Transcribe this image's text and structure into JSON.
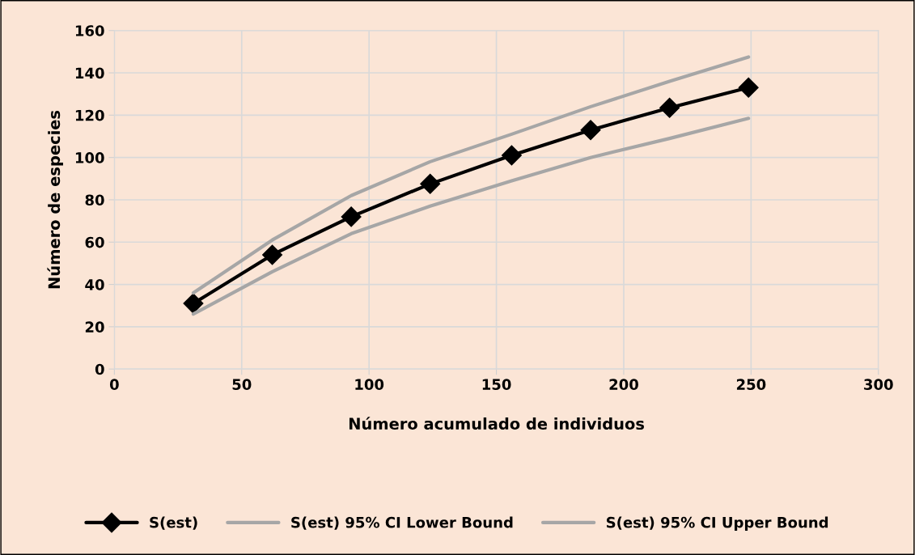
{
  "chart_data": {
    "type": "line",
    "xlabel": "Número acumulado de individuos",
    "ylabel": "Número de especies",
    "x": [
      31,
      62,
      93,
      124,
      156,
      187,
      218,
      249
    ],
    "series": [
      {
        "name": "S(est)",
        "color": "#000000",
        "marker": "diamond",
        "values": [
          31,
          54,
          72,
          87.5,
          101,
          113,
          123.5,
          133
        ]
      },
      {
        "name": "S(est) 95% CI Lower Bound",
        "color": "#a6a6a6",
        "marker": "none",
        "values": [
          26,
          46,
          64,
          77,
          89,
          100,
          109,
          118.5
        ]
      },
      {
        "name": "S(est) 95% CI Upper Bound",
        "color": "#a6a6a6",
        "marker": "none",
        "values": [
          36,
          61,
          82,
          98,
          111,
          124,
          136,
          147.5
        ]
      }
    ],
    "xlim": [
      0,
      300
    ],
    "xticks": [
      0,
      50,
      100,
      150,
      200,
      250,
      300
    ],
    "ylim": [
      0,
      160
    ],
    "yticks": [
      0,
      20,
      40,
      60,
      80,
      100,
      120,
      140,
      160
    ],
    "grid": true,
    "legend": "bottom",
    "line_style": "solid"
  }
}
